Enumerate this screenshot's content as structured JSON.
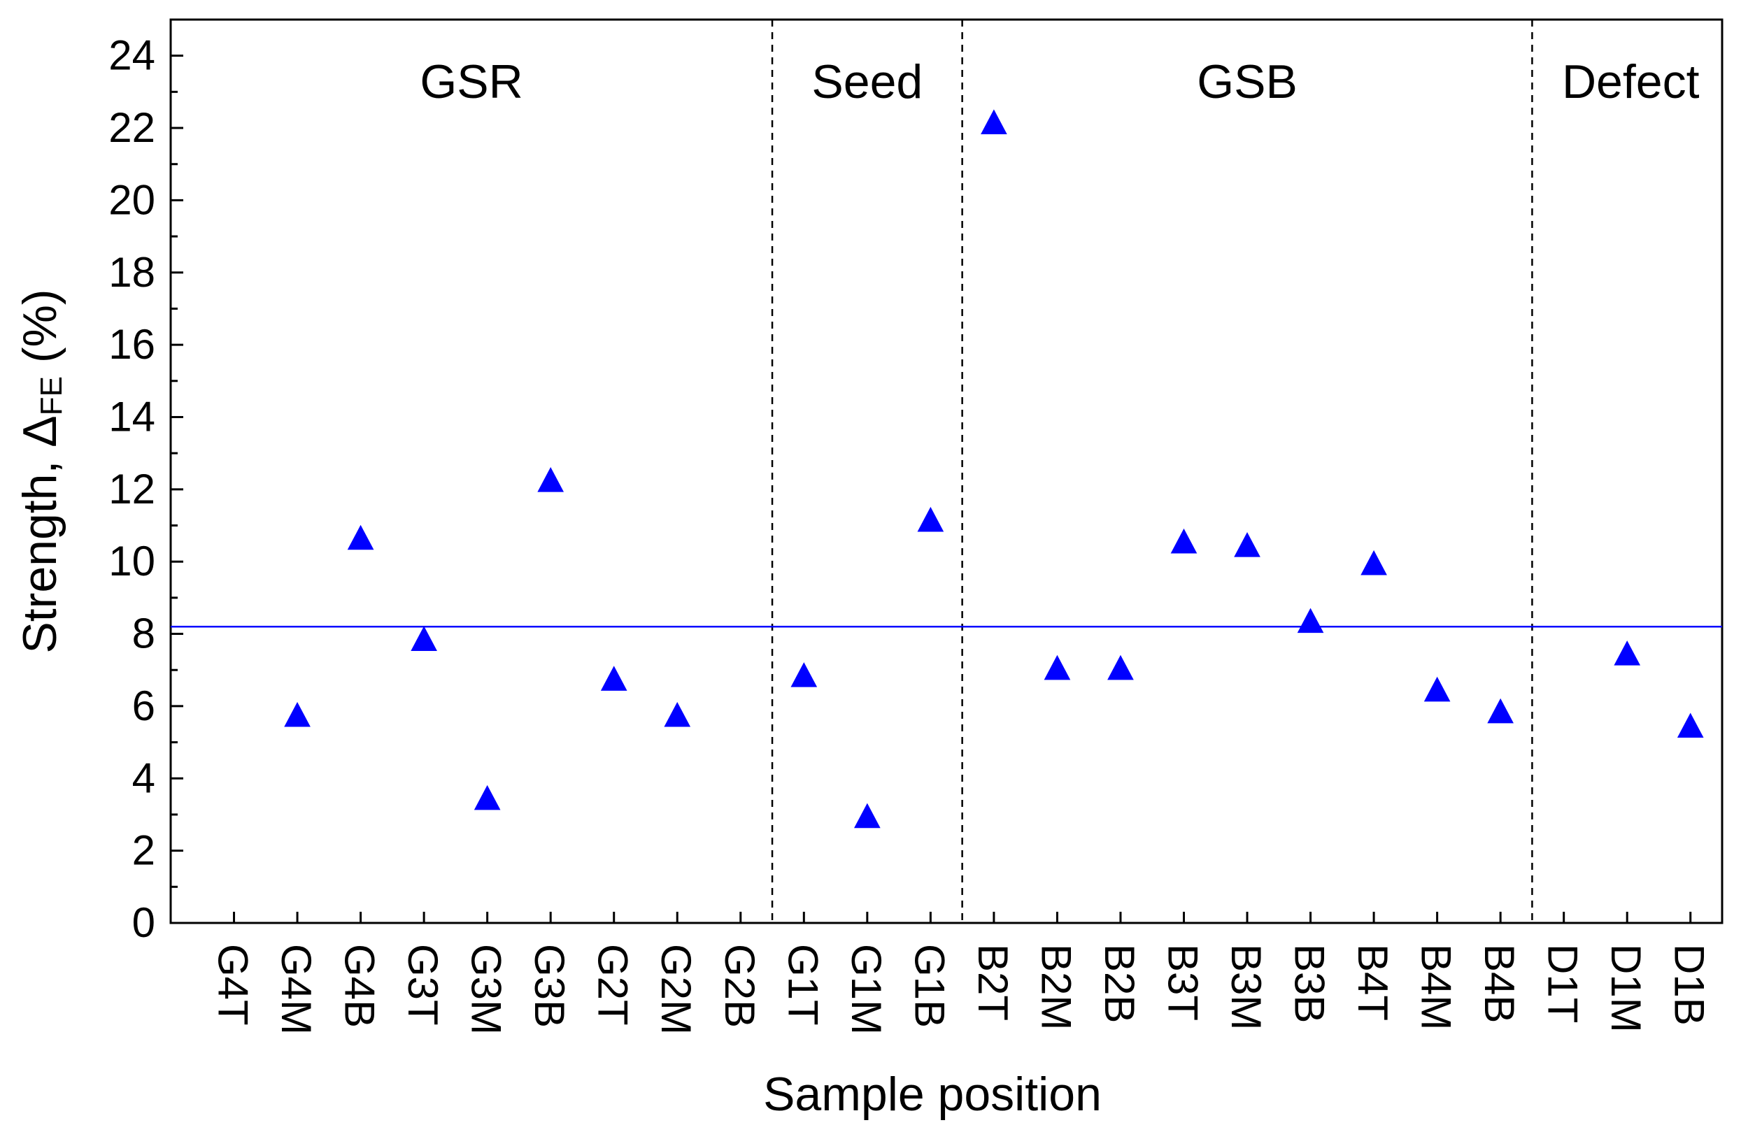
{
  "chart_data": {
    "type": "scatter",
    "title": "",
    "xlabel": "Sample position",
    "ylabel": {
      "main": "Strength, Δ",
      "subscript": "FE",
      "unit": " (%)"
    },
    "ylim": [
      0,
      25
    ],
    "yticks": [
      0,
      2,
      4,
      6,
      8,
      10,
      12,
      14,
      16,
      18,
      20,
      22,
      24
    ],
    "categories": [
      "G4T",
      "G4M",
      "G4B",
      "G3T",
      "G3M",
      "G3B",
      "G2T",
      "G2M",
      "G2B",
      "G1T",
      "G1M",
      "G1B",
      "B2T",
      "B2M",
      "B2B",
      "B3T",
      "B3M",
      "B3B",
      "B4T",
      "B4M",
      "B4B",
      "D1T",
      "D1M",
      "D1B"
    ],
    "series": [
      {
        "name": "Strength",
        "marker": "triangle-up",
        "color": "#0000ff",
        "values": [
          null,
          5.7,
          10.6,
          7.8,
          3.4,
          12.2,
          6.7,
          5.7,
          null,
          6.8,
          2.9,
          11.1,
          22.1,
          7.0,
          7.0,
          10.5,
          10.4,
          8.3,
          9.9,
          6.4,
          5.8,
          null,
          7.4,
          5.4
        ]
      }
    ],
    "reference_line": {
      "y": 8.2,
      "color": "#0000ff"
    },
    "regions": [
      {
        "label": "GSR",
        "from": "G4T",
        "to": "G2B"
      },
      {
        "label": "Seed",
        "from": "G1T",
        "to": "G1B"
      },
      {
        "label": "GSB",
        "from": "B2T",
        "to": "B4B"
      },
      {
        "label": "Defect",
        "from": "D1T",
        "to": "D1B"
      }
    ]
  }
}
